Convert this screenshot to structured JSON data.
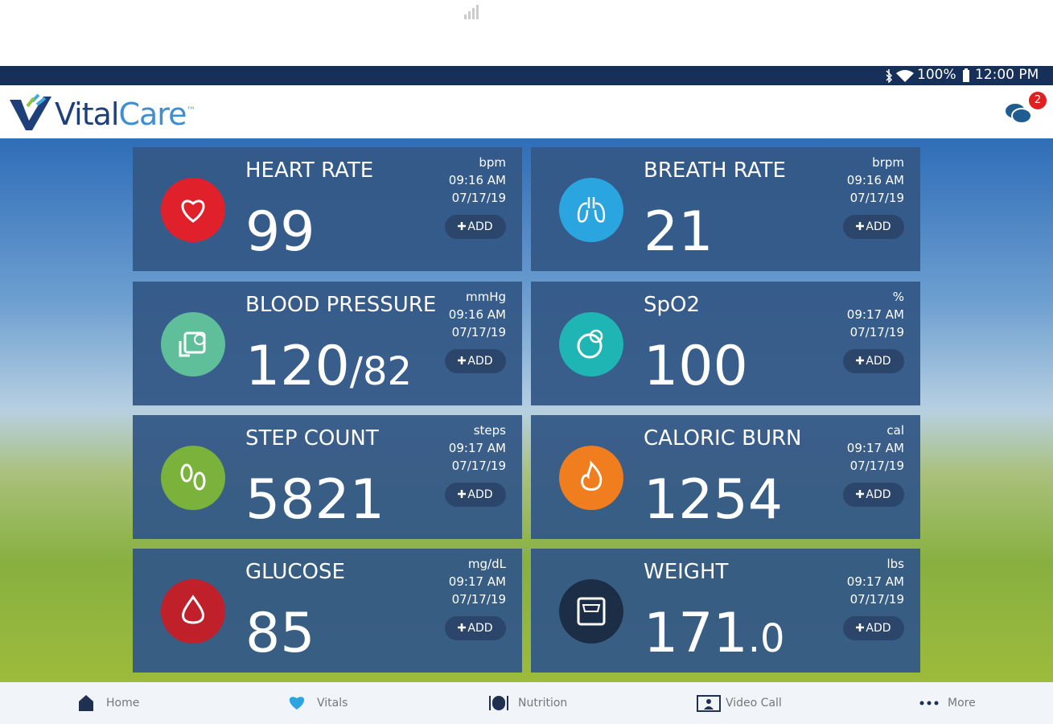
{
  "status_bar": {
    "battery": "100%",
    "time": "12:00 PM"
  },
  "header": {
    "logo_primary": "Vital",
    "logo_secondary": "Care",
    "logo_mark": "™",
    "chat_badge": "2"
  },
  "cards": [
    {
      "title": "HEART RATE",
      "unit": "bpm",
      "time": "09:16 AM",
      "date": "07/17/19",
      "value": "99",
      "add": "ADD"
    },
    {
      "title": "BREATH RATE",
      "unit": "brpm",
      "time": "09:16 AM",
      "date": "07/17/19",
      "value": "21",
      "add": "ADD"
    },
    {
      "title": "BLOOD PRESSURE",
      "unit": "mmHg",
      "time": "09:16 AM",
      "date": "07/17/19",
      "value": "120",
      "value_small": "/82",
      "add": "ADD"
    },
    {
      "title": "SpO2",
      "unit": "%",
      "time": "09:17 AM",
      "date": "07/17/19",
      "value": "100",
      "add": "ADD"
    },
    {
      "title": "STEP COUNT",
      "unit": "steps",
      "time": "09:17 AM",
      "date": "07/17/19",
      "value": "5821",
      "add": "ADD"
    },
    {
      "title": "CALORIC BURN",
      "unit": "cal",
      "time": "09:17 AM",
      "date": "07/17/19",
      "value": "1254",
      "add": "ADD"
    },
    {
      "title": "GLUCOSE",
      "unit": "mg/dL",
      "time": "09:17 AM",
      "date": "07/17/19",
      "value": "85",
      "add": "ADD"
    },
    {
      "title": "WEIGHT",
      "unit": "lbs",
      "time": "09:17 AM",
      "date": "07/17/19",
      "value": "171",
      "value_small": ".0",
      "add": "ADD"
    }
  ],
  "nav": [
    "Home",
    "Vitals",
    "Nutrition",
    "Video Call",
    "More"
  ]
}
